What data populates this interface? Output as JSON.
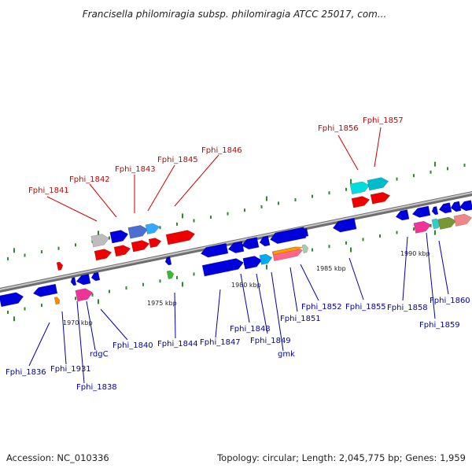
{
  "title": "Francisella philomiragia subsp. philomiragia ATCC 25017, com...",
  "footer": {
    "accession": "Accession: NC_010336",
    "summary": "Topology: circular; Length: 2,045,775 bp; Genes: 1,959"
  },
  "colors": {
    "forward_label": "#cc0000",
    "reverse_label": "#0000aa",
    "backbone": "#8c8c8c",
    "tick_green": "#2d8a2d"
  },
  "kbp_labels": [
    "1970 kbp",
    "1975 kbp",
    "1980 kbp",
    "1985 kbp",
    "1990 kbp"
  ],
  "forward_genes": [
    "Fphi_1841",
    "Fphi_1842",
    "Fphi_1843",
    "Fphi_1845",
    "Fphi_1846",
    "Fphi_1856",
    "Fphi_1857"
  ],
  "reverse_genes": [
    "Fphi_1836",
    "Fphi_1931",
    "Fphi_1838",
    "rdgC",
    "Fphi_1840",
    "Fphi_1844",
    "Fphi_1847",
    "Fphi_1848",
    "Fphi_1849",
    "gmk",
    "Fphi_1851",
    "Fphi_1852",
    "Fphi_1855",
    "Fphi_1858",
    "Fphi_1859",
    "Fphi_1860"
  ]
}
